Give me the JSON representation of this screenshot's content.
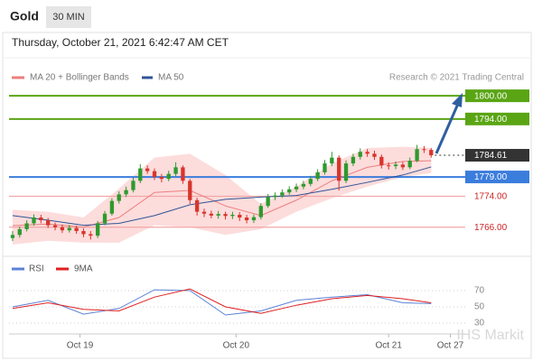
{
  "chart_data": {
    "type": "candlestick",
    "title": "Gold",
    "timeframe": "30 MIN",
    "subtitle": "Thursday, October 21, 2021 6:42:47 AM CET",
    "source": "Research © 2021 Trading Central",
    "watermark": "IHS Markit",
    "xlim": [
      -0.5,
      63.8
    ],
    "xticks": [
      {
        "value": 9.5,
        "label": "Oct 19"
      },
      {
        "value": 31.5,
        "label": "Oct 20"
      },
      {
        "value": 53,
        "label": "Oct 21"
      },
      {
        "value": 61.7,
        "label": "Oct 27"
      }
    ],
    "ylim": [
      1758.7,
      1802.6
    ],
    "up_color": "#2e9a2e",
    "down_color": "#d8352b",
    "candles": [
      [
        1763.2,
        1765.0,
        1762.4,
        1764.0
      ],
      [
        1764.0,
        1766.2,
        1763.3,
        1765.5
      ],
      [
        1765.5,
        1767.8,
        1764.9,
        1767.0
      ],
      [
        1767.0,
        1769.3,
        1766.4,
        1768.5
      ],
      [
        1768.5,
        1769.2,
        1767.0,
        1767.8
      ],
      [
        1767.8,
        1768.4,
        1765.8,
        1766.5
      ],
      [
        1766.5,
        1767.2,
        1765.2,
        1766.0
      ],
      [
        1766.0,
        1766.7,
        1764.5,
        1765.2
      ],
      [
        1765.2,
        1766.6,
        1764.6,
        1765.8
      ],
      [
        1765.8,
        1766.4,
        1764.3,
        1765.0
      ],
      [
        1765.0,
        1765.7,
        1763.4,
        1764.2
      ],
      [
        1764.2,
        1765.0,
        1762.8,
        1763.8
      ],
      [
        1763.8,
        1767.6,
        1763.2,
        1767.0
      ],
      [
        1767.0,
        1770.2,
        1766.5,
        1769.5
      ],
      [
        1769.5,
        1773.5,
        1769.0,
        1772.8
      ],
      [
        1772.8,
        1775.3,
        1772.1,
        1774.5
      ],
      [
        1774.5,
        1776.5,
        1773.8,
        1775.6
      ],
      [
        1775.6,
        1778.8,
        1775.0,
        1778.0
      ],
      [
        1778.0,
        1782.3,
        1777.4,
        1781.2
      ],
      [
        1781.2,
        1782.0,
        1779.8,
        1780.5
      ],
      [
        1780.5,
        1781.2,
        1778.2,
        1779.0
      ],
      [
        1779.0,
        1779.8,
        1777.6,
        1778.5
      ],
      [
        1778.5,
        1780.6,
        1777.9,
        1779.8
      ],
      [
        1779.8,
        1782.8,
        1779.2,
        1781.5
      ],
      [
        1781.5,
        1782.0,
        1777.2,
        1778.0
      ],
      [
        1778.0,
        1778.5,
        1772.0,
        1773.0
      ],
      [
        1773.0,
        1773.6,
        1769.0,
        1770.0
      ],
      [
        1770.0,
        1770.8,
        1768.6,
        1769.5
      ],
      [
        1769.5,
        1770.3,
        1768.3,
        1769.0
      ],
      [
        1769.0,
        1770.2,
        1768.2,
        1769.4
      ],
      [
        1769.4,
        1770.0,
        1768.0,
        1768.9
      ],
      [
        1768.9,
        1770.0,
        1768.1,
        1769.2
      ],
      [
        1769.2,
        1769.9,
        1767.6,
        1768.5
      ],
      [
        1768.5,
        1769.2,
        1767.0,
        1767.8
      ],
      [
        1767.8,
        1769.3,
        1767.1,
        1768.6
      ],
      [
        1768.6,
        1772.2,
        1768.0,
        1771.5
      ],
      [
        1771.5,
        1774.6,
        1771.0,
        1773.8
      ],
      [
        1773.8,
        1775.0,
        1773.0,
        1774.2
      ],
      [
        1774.2,
        1775.8,
        1773.6,
        1775.0
      ],
      [
        1775.0,
        1776.6,
        1774.4,
        1775.8
      ],
      [
        1775.8,
        1777.3,
        1775.1,
        1776.5
      ],
      [
        1776.5,
        1778.0,
        1775.8,
        1777.2
      ],
      [
        1777.2,
        1779.3,
        1776.6,
        1778.5
      ],
      [
        1778.5,
        1781.0,
        1777.9,
        1780.2
      ],
      [
        1780.2,
        1783.4,
        1779.6,
        1782.5
      ],
      [
        1782.5,
        1785.5,
        1781.8,
        1784.0
      ],
      [
        1784.0,
        1784.6,
        1775.5,
        1778.0
      ],
      [
        1778.0,
        1783.3,
        1777.4,
        1782.5
      ],
      [
        1782.5,
        1785.0,
        1781.8,
        1784.2
      ],
      [
        1784.2,
        1786.4,
        1783.5,
        1785.5
      ],
      [
        1785.5,
        1786.2,
        1784.2,
        1785.0
      ],
      [
        1785.0,
        1785.8,
        1783.4,
        1784.2
      ],
      [
        1784.2,
        1784.8,
        1781.2,
        1782.0
      ],
      [
        1782.0,
        1782.8,
        1780.9,
        1781.8
      ],
      [
        1781.8,
        1783.0,
        1781.0,
        1782.2
      ],
      [
        1782.2,
        1782.9,
        1780.8,
        1781.5
      ],
      [
        1781.5,
        1784.0,
        1781.0,
        1783.2
      ],
      [
        1783.2,
        1787.3,
        1782.8,
        1786.2
      ],
      [
        1786.2,
        1787.0,
        1785.2,
        1786.0
      ],
      [
        1786.0,
        1786.5,
        1784.0,
        1784.61
      ]
    ],
    "line_x": [
      0,
      5,
      10,
      15,
      20,
      25,
      30,
      35,
      40,
      45,
      50,
      55,
      59
    ],
    "series": [
      {
        "name": "MA 20 + Bollinger Bands",
        "color": "#ec7e7e",
        "band_color": "#fddcdc",
        "values": [
          1766.4,
          1766.8,
          1766.0,
          1768.5,
          1775.0,
          1775.5,
          1771.5,
          1769.0,
          1773.0,
          1778.0,
          1781.5,
          1783.0,
          1783.2
        ],
        "upper": [
          1770.5,
          1770.0,
          1768.5,
          1776.0,
          1784.0,
          1785.0,
          1779.5,
          1772.0,
          1776.5,
          1782.5,
          1786.5,
          1786.8,
          1786.5
        ],
        "lower": [
          1761.5,
          1762.5,
          1762.0,
          1762.0,
          1766.5,
          1766.0,
          1764.0,
          1765.5,
          1770.0,
          1773.5,
          1776.5,
          1779.0,
          1780.0
        ]
      },
      {
        "name": "MA 50",
        "color": "#2f5597",
        "values": [
          1769.0,
          1767.8,
          1766.5,
          1767.0,
          1769.0,
          1771.8,
          1773.2,
          1773.8,
          1774.2,
          1775.8,
          1777.6,
          1779.5,
          1781.6
        ]
      }
    ],
    "levels": [
      {
        "value": 1800,
        "label": "1800.00",
        "color": "#5aa514",
        "line_color": "#5aa514",
        "boxed": true,
        "dotted": false
      },
      {
        "value": 1794,
        "label": "1794.00",
        "color": "#5aa514",
        "line_color": "#5aa514",
        "boxed": true,
        "dotted": false
      },
      {
        "value": 1784.61,
        "label": "1784.61",
        "color": "#333333",
        "line_color": "#333333",
        "boxed": true,
        "dotted": true
      },
      {
        "value": 1779,
        "label": "1779.00",
        "color": "#3b7ddd",
        "line_color": "#3b7ddd",
        "boxed": true,
        "dotted": false
      },
      {
        "value": 1774,
        "label": "1774.00",
        "color": "#cc2222",
        "line_color": "#f2a6a6",
        "boxed": false,
        "dotted": false
      },
      {
        "value": 1766,
        "label": "1766.00",
        "color": "#cc2222",
        "line_color": "#f2a6a6",
        "boxed": false,
        "dotted": false
      }
    ],
    "rsi": {
      "ylim": [
        20,
        90
      ],
      "yticks": [
        30,
        50,
        70
      ],
      "grid": true,
      "series": [
        {
          "name": "RSI",
          "color": "#5b82d6",
          "values": [
            50,
            58,
            41,
            48,
            71,
            70,
            40,
            45,
            58,
            62,
            65,
            55,
            54
          ]
        },
        {
          "name": "9MA",
          "color": "#e02020",
          "values": [
            48,
            55,
            47,
            45,
            62,
            72,
            50,
            42,
            52,
            60,
            64,
            60,
            55
          ]
        }
      ]
    }
  }
}
